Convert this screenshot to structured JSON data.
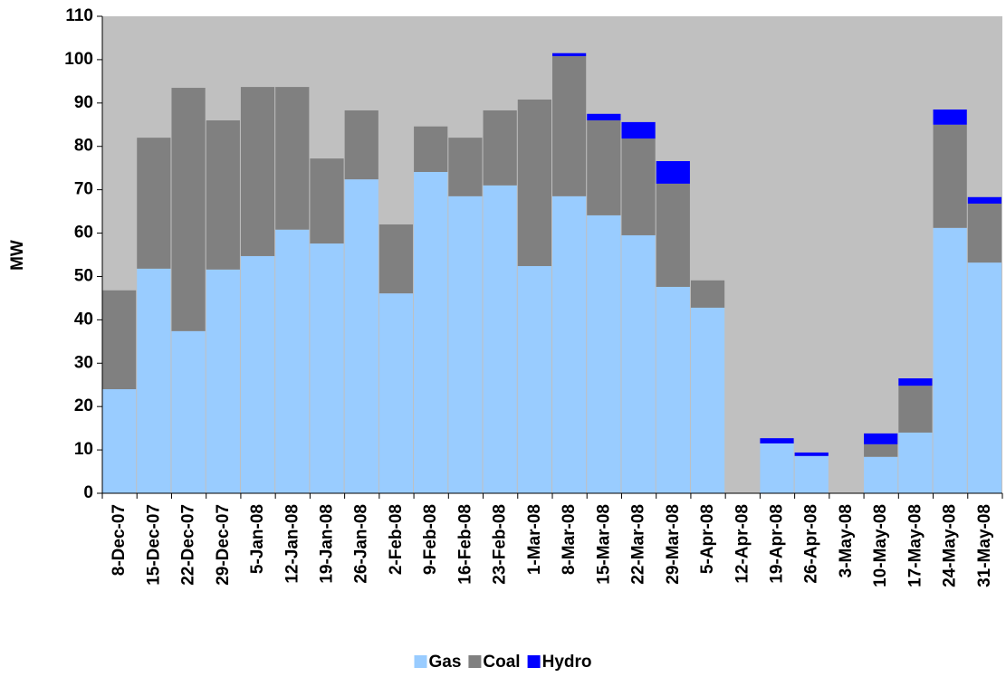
{
  "chart_data": {
    "type": "stacked-bar",
    "y_label": "MW",
    "categories": [
      "8-Dec-07",
      "15-Dec-07",
      "22-Dec-07",
      "29-Dec-07",
      "5-Jan-08",
      "12-Jan-08",
      "19-Jan-08",
      "26-Jan-08",
      "2-Feb-08",
      "9-Feb-08",
      "16-Feb-08",
      "23-Feb-08",
      "1-Mar-08",
      "8-Mar-08",
      "15-Mar-08",
      "22-Mar-08",
      "29-Mar-08",
      "5-Apr-08",
      "12-Apr-08",
      "19-Apr-08",
      "26-Apr-08",
      "3-May-08",
      "10-May-08",
      "17-May-08",
      "24-May-08",
      "31-May-08"
    ],
    "series": [
      {
        "name": "Gas",
        "color": "#99ccff",
        "values": [
          24,
          51.8,
          37.4,
          51.6,
          54.7,
          60.8,
          57.6,
          72.4,
          46.1,
          74.1,
          68.5,
          71,
          52.4,
          68.5,
          64.1,
          59.5,
          47.6,
          42.8,
          0,
          11.5,
          8.6,
          0,
          8.4,
          14,
          61.2,
          53.2
        ]
      },
      {
        "name": "Coal",
        "color": "#808080",
        "values": [
          22.8,
          30.2,
          56.1,
          34.4,
          39,
          32.9,
          19.6,
          15.9,
          15.9,
          10.5,
          13.5,
          17.3,
          38.4,
          32.3,
          21.9,
          22.3,
          23.8,
          6.3,
          0,
          0,
          0,
          0,
          2.9,
          10.8,
          23.8,
          13.6
        ]
      },
      {
        "name": "Hydro",
        "color": "#0000ff",
        "values": [
          0,
          0,
          0,
          0,
          0,
          0,
          0,
          0,
          0,
          0,
          0,
          0,
          0,
          0.7,
          1.5,
          3.8,
          5.2,
          0,
          0,
          1.2,
          0.8,
          0,
          2.5,
          1.7,
          3.5,
          1.5
        ]
      }
    ],
    "ylim": [
      0,
      110
    ],
    "yticks": [
      0,
      10,
      20,
      30,
      40,
      50,
      60,
      70,
      80,
      90,
      100,
      110
    ],
    "grid": false,
    "plot_background": "#c0c0c0",
    "legend_position": "bottom"
  }
}
